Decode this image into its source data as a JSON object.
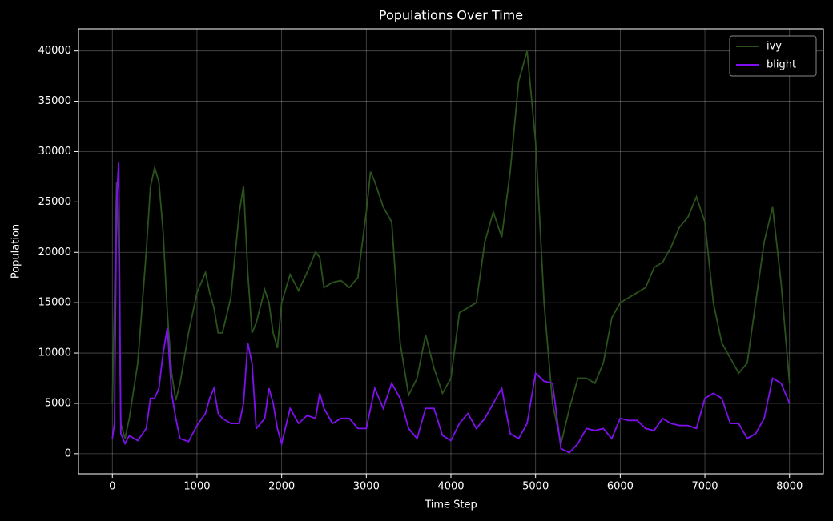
{
  "chart_data": {
    "type": "line",
    "title": "Populations Over Time",
    "x_label": "Time Step",
    "y_label": "Population",
    "x": [
      0,
      25,
      50,
      75,
      100,
      150,
      200,
      300,
      400,
      450,
      500,
      550,
      600,
      650,
      700,
      750,
      800,
      900,
      1000,
      1100,
      1150,
      1200,
      1250,
      1300,
      1400,
      1500,
      1550,
      1600,
      1650,
      1700,
      1800,
      1850,
      1900,
      1950,
      2000,
      2100,
      2200,
      2300,
      2400,
      2450,
      2500,
      2600,
      2700,
      2800,
      2900,
      3000,
      3050,
      3100,
      3200,
      3300,
      3400,
      3500,
      3600,
      3700,
      3800,
      3900,
      4000,
      4100,
      4200,
      4300,
      4400,
      4500,
      4600,
      4700,
      4800,
      4900,
      5000,
      5100,
      5200,
      5300,
      5400,
      5500,
      5600,
      5700,
      5800,
      5900,
      6000,
      6100,
      6200,
      6300,
      6400,
      6500,
      6600,
      6700,
      6800,
      6900,
      7000,
      7100,
      7200,
      7300,
      7400,
      7500,
      7600,
      7700,
      7800,
      7900,
      8000
    ],
    "series": [
      {
        "name": "ivy",
        "color": "#2a531c",
        "values": [
          5000,
          15000,
          27000,
          20000,
          3000,
          1500,
          3500,
          9000,
          20000,
          26500,
          28400,
          27000,
          22000,
          14000,
          8000,
          5300,
          7000,
          12000,
          16000,
          18000,
          16000,
          14500,
          12000,
          12000,
          15500,
          24000,
          26600,
          18000,
          12000,
          13000,
          16300,
          15000,
          12000,
          10500,
          15000,
          17800,
          16200,
          18000,
          20000,
          19500,
          16500,
          17000,
          17200,
          16500,
          17500,
          24000,
          28000,
          27000,
          24500,
          23000,
          11000,
          5800,
          7500,
          11800,
          8500,
          6000,
          7500,
          14000,
          14500,
          15000,
          21000,
          24000,
          21500,
          28000,
          37000,
          40000,
          31000,
          15000,
          5000,
          1000,
          4500,
          7500,
          7500,
          7000,
          9000,
          13500,
          15000,
          15500,
          16000,
          16500,
          18500,
          19000,
          20500,
          22500,
          23500,
          25500,
          23000,
          15000,
          11000,
          9500,
          8000,
          9000,
          15000,
          21000,
          24500,
          17000,
          7000
        ]
      },
      {
        "name": "blight",
        "color": "#8010f0",
        "values": [
          1500,
          3000,
          25000,
          29000,
          2000,
          1000,
          1800,
          1300,
          2500,
          5500,
          5500,
          6500,
          10000,
          12500,
          6000,
          3500,
          1500,
          1200,
          2800,
          4000,
          5500,
          6500,
          4000,
          3500,
          3000,
          3000,
          5000,
          11000,
          9000,
          2500,
          3500,
          6500,
          5000,
          2500,
          1000,
          4500,
          3000,
          3800,
          3500,
          6000,
          4500,
          3000,
          3500,
          3500,
          2500,
          2500,
          4500,
          6500,
          4500,
          7000,
          5500,
          2500,
          1500,
          4500,
          4500,
          1800,
          1300,
          3000,
          4000,
          2500,
          3500,
          5000,
          6500,
          2000,
          1500,
          3000,
          8000,
          7200,
          7000,
          500,
          100,
          1000,
          2500,
          2300,
          2500,
          1500,
          3500,
          3300,
          3300,
          2500,
          2300,
          3500,
          3000,
          2800,
          2800,
          2500,
          5500,
          6000,
          5500,
          3000,
          3000,
          1500,
          2000,
          3500,
          7500,
          7000,
          5000
        ]
      }
    ],
    "xlim": [
      -400,
      8400
    ],
    "ylim": [
      -2000,
      42200
    ],
    "xticks": [
      0,
      1000,
      2000,
      3000,
      4000,
      5000,
      6000,
      7000,
      8000
    ],
    "yticks": [
      0,
      5000,
      10000,
      15000,
      20000,
      25000,
      30000,
      35000,
      40000
    ],
    "grid": true,
    "legend": "upper right"
  }
}
